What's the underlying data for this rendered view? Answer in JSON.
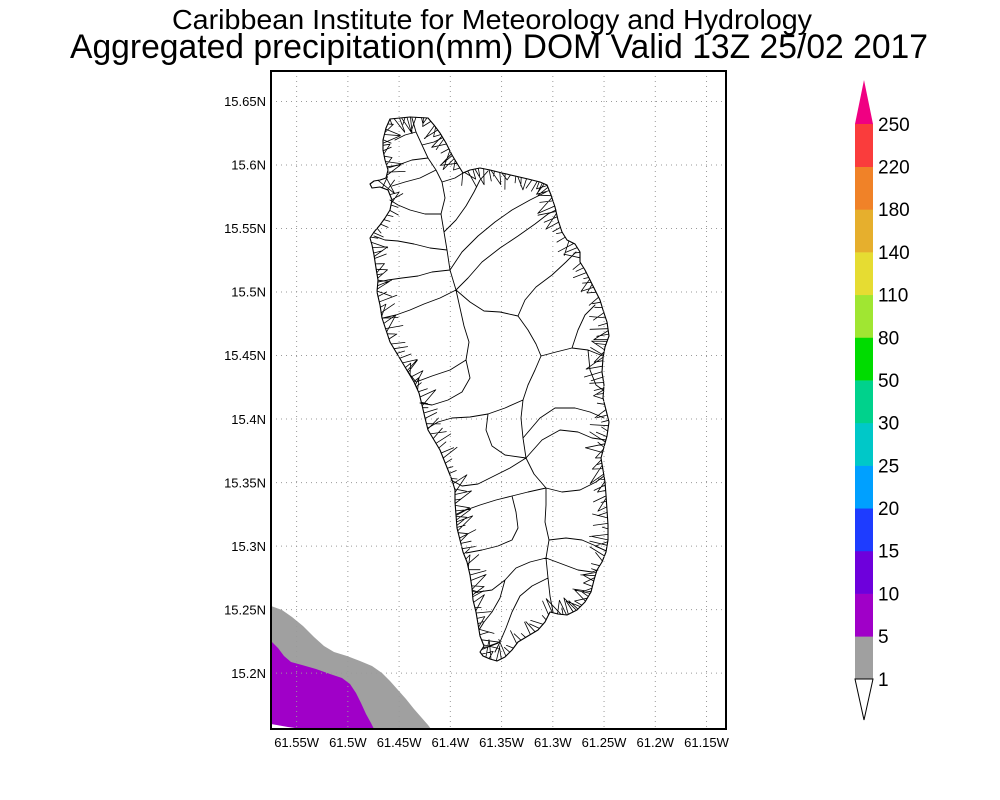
{
  "title": {
    "line1": "Caribbean Institute for Meteorology and Hydrology",
    "line2": "Aggregated precipitation(mm) DOM Valid 13Z 25/02 2017"
  },
  "map": {
    "lon_range": [
      -61.575,
      -61.131
    ],
    "lat_range": [
      15.156,
      15.674
    ],
    "grid": true,
    "lat_ticks": [
      {
        "value": 15.65,
        "label": "15.65N"
      },
      {
        "value": 15.6,
        "label": "15.6N"
      },
      {
        "value": 15.55,
        "label": "15.55N"
      },
      {
        "value": 15.5,
        "label": "15.5N"
      },
      {
        "value": 15.45,
        "label": "15.45N"
      },
      {
        "value": 15.4,
        "label": "15.4N"
      },
      {
        "value": 15.35,
        "label": "15.35N"
      },
      {
        "value": 15.3,
        "label": "15.3N"
      },
      {
        "value": 15.25,
        "label": "15.25N"
      },
      {
        "value": 15.2,
        "label": "15.2N"
      }
    ],
    "lon_ticks": [
      {
        "value": -61.55,
        "label": "61.55W"
      },
      {
        "value": -61.5,
        "label": "61.5W"
      },
      {
        "value": -61.45,
        "label": "61.45W"
      },
      {
        "value": -61.4,
        "label": "61.4W"
      },
      {
        "value": -61.35,
        "label": "61.35W"
      },
      {
        "value": -61.3,
        "label": "61.3W"
      },
      {
        "value": -61.25,
        "label": "61.25W"
      },
      {
        "value": -61.2,
        "label": "61.2W"
      },
      {
        "value": -61.15,
        "label": "61.15W"
      }
    ]
  },
  "colorbar": {
    "levels": [
      1,
      5,
      10,
      15,
      20,
      25,
      30,
      50,
      80,
      110,
      140,
      180,
      220,
      250
    ],
    "colors": [
      "#a0a0a0",
      "#a000c8",
      "#6e00dc",
      "#1e3cff",
      "#00a0ff",
      "#00c8c8",
      "#00d28c",
      "#00dc00",
      "#a0e632",
      "#e6dc32",
      "#e6af2d",
      "#f08228",
      "#fa3c3c"
    ],
    "above_color": "#f00082",
    "below_color": "#ffffff"
  }
}
